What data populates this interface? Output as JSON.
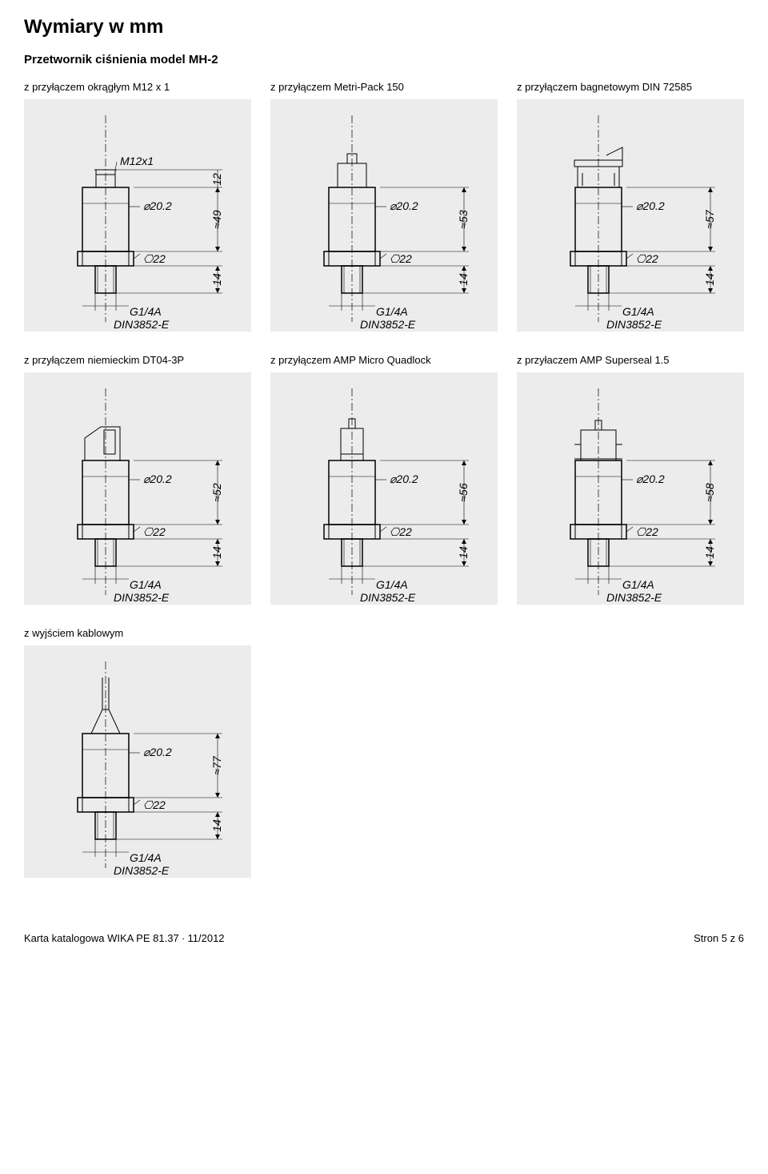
{
  "page": {
    "title": "Wymiary w mm",
    "subtitle": "Przetwornik ciśnienia model MH-2"
  },
  "diagrams": {
    "bg_color": "#ececec",
    "stroke_color": "#000000",
    "text_color": "#000000",
    "annot_font_size": 14,
    "annot_font_style": "italic",
    "common": {
      "diameter": "⌀20.2",
      "hex": "⎔22",
      "thread_len": "14",
      "thread_label1": "G1/4A",
      "thread_label2": "DIN3852-E"
    },
    "items": [
      {
        "label": "z przyłączem okrągłym M12 x 1",
        "height": "≈49",
        "top_label": "M12x1",
        "top_dim": "12",
        "connector": "m12"
      },
      {
        "label": "z przyłączem Metri-Pack 150",
        "height": "≈53",
        "connector": "metripack"
      },
      {
        "label": "z przyłączem bagnetowym DIN 72585",
        "height": "≈57",
        "connector": "bayonet"
      },
      {
        "label": "z przyłączem niemieckim DT04-3P",
        "height": "≈52",
        "connector": "dt04"
      },
      {
        "label": "z przyłączem AMP Micro Quadlock",
        "height": "≈56",
        "connector": "quadlock"
      },
      {
        "label": "z przyłaczem AMP Superseal 1.5",
        "height": "≈58",
        "connector": "superseal"
      },
      {
        "label": "z wyjściem kablowym",
        "height": "≈77",
        "connector": "cable"
      }
    ]
  },
  "footer": {
    "left": "Karta katalogowa WIKA PE 81.37 ∙ 11/2012",
    "right": "Stron 5 z 6"
  }
}
